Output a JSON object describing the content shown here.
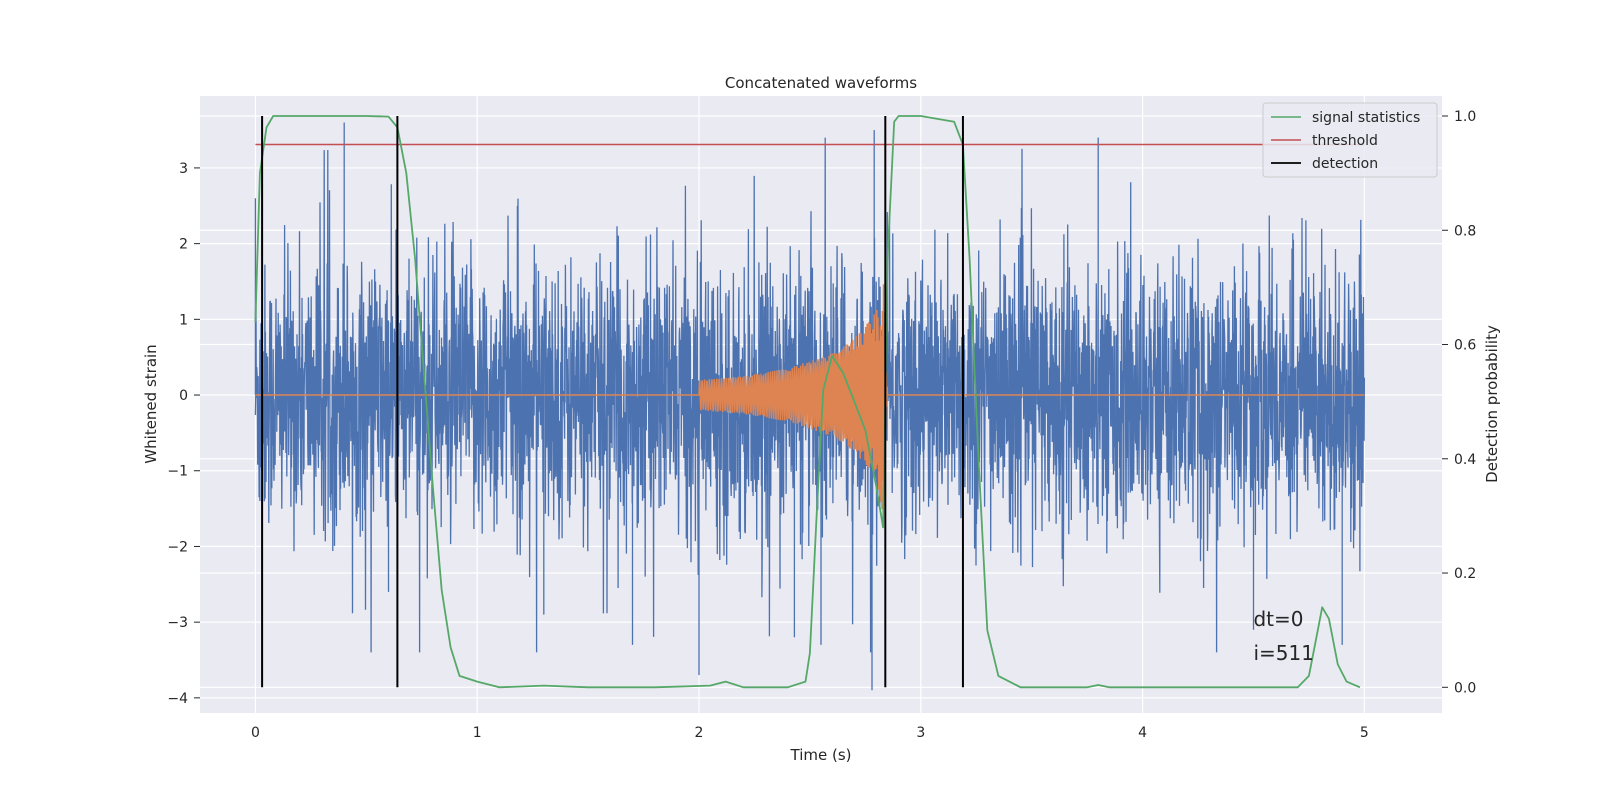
{
  "chart_data": {
    "type": "line",
    "title": "Concatenated waveforms",
    "xlabel": "Time (s)",
    "ylabel_left": "Whitened strain",
    "ylabel_right": "Detection probability",
    "xlim": [
      -0.25,
      5.35
    ],
    "ylim_left": [
      -4.2,
      3.95
    ],
    "ylim_right": [
      -0.045,
      1.035
    ],
    "xticks": [
      0,
      1,
      2,
      3,
      4,
      5
    ],
    "xtick_labels": [
      "0",
      "1",
      "2",
      "3",
      "4",
      "5"
    ],
    "yticks_left": [
      -4,
      -3,
      -2,
      -1,
      0,
      1,
      2,
      3
    ],
    "ytick_labels_left": [
      "−4",
      "−3",
      "−2",
      "−1",
      "0",
      "1",
      "2",
      "3"
    ],
    "yticks_right": [
      0.0,
      0.2,
      0.4,
      0.6,
      0.8,
      1.0
    ],
    "ytick_labels_right": [
      "0.0",
      "0.2",
      "0.4",
      "0.6",
      "0.8",
      "1.0"
    ],
    "grid": true,
    "legend_position": "top-right",
    "legend": [
      {
        "label": "signal statistics",
        "color": "#55a868"
      },
      {
        "label": "threshold",
        "color": "#c44e52"
      },
      {
        "label": "detection",
        "color": "#000000"
      }
    ],
    "series": [
      {
        "name": "whitened strain",
        "axis": "left",
        "color": "#4c72b0",
        "description": "noisy strain, approx. range -3.6 to 3.6",
        "x_range": [
          0,
          5
        ],
        "sample_points": [
          [
            0.0,
            2.6
          ],
          [
            0.02,
            -1.4
          ],
          [
            0.4,
            3.6
          ],
          [
            0.6,
            -2.6
          ],
          [
            0.64,
            -2.3
          ],
          [
            1.3,
            -2.9
          ],
          [
            1.7,
            -3.3
          ],
          [
            2.0,
            -3.7
          ],
          [
            2.43,
            -3.2
          ],
          [
            2.55,
            -3.3
          ],
          [
            2.78,
            -3.9
          ],
          [
            2.79,
            3.5
          ],
          [
            3.8,
            3.4
          ],
          [
            4.5,
            -3.1
          ],
          [
            4.9,
            -3.3
          ],
          [
            4.98,
            1.4
          ]
        ]
      },
      {
        "name": "injected waveform",
        "axis": "left",
        "color": "#dd8452",
        "description": "chirp from 2.0 s to about 2.85 s, amplitude growing from 0.2 to about 1.6",
        "x": [
          0,
          2.0,
          2.2,
          2.4,
          2.6,
          2.7,
          2.8,
          2.83,
          2.85,
          5
        ],
        "amplitude": [
          0,
          0.2,
          0.25,
          0.35,
          0.55,
          0.75,
          1.1,
          1.6,
          0,
          0
        ]
      },
      {
        "name": "signal statistics",
        "axis": "right",
        "color": "#55a868",
        "x": [
          0,
          0.02,
          0.05,
          0.08,
          0.12,
          0.3,
          0.5,
          0.6,
          0.64,
          0.68,
          0.72,
          0.76,
          0.8,
          0.84,
          0.88,
          0.92,
          1.0,
          1.1,
          1.3,
          1.5,
          1.8,
          2.05,
          2.12,
          2.2,
          2.4,
          2.48,
          2.5,
          2.53,
          2.56,
          2.6,
          2.65,
          2.7,
          2.75,
          2.8,
          2.83,
          2.85,
          2.88,
          2.9,
          3.0,
          3.15,
          3.19,
          3.22,
          3.26,
          3.3,
          3.35,
          3.45,
          3.75,
          3.8,
          3.85,
          4.3,
          4.7,
          4.75,
          4.78,
          4.81,
          4.84,
          4.88,
          4.92,
          4.98
        ],
        "y": [
          0.64,
          0.9,
          0.98,
          1.0,
          1.0,
          1.0,
          1.0,
          0.999,
          0.98,
          0.9,
          0.75,
          0.55,
          0.35,
          0.17,
          0.07,
          0.02,
          0.01,
          0.0,
          0.003,
          0.0,
          0.0,
          0.003,
          0.01,
          0.0,
          0.0,
          0.01,
          0.06,
          0.3,
          0.52,
          0.58,
          0.55,
          0.5,
          0.45,
          0.35,
          0.28,
          0.75,
          0.99,
          1.0,
          1.0,
          0.99,
          0.95,
          0.75,
          0.4,
          0.1,
          0.02,
          0.0,
          0.0,
          0.004,
          0.0,
          0.0,
          0.0,
          0.02,
          0.08,
          0.14,
          0.12,
          0.04,
          0.01,
          0.0
        ]
      },
      {
        "name": "threshold",
        "axis": "right",
        "color": "#c44e52",
        "x": [
          0,
          5
        ],
        "y": [
          0.95,
          0.95
        ]
      },
      {
        "name": "detection",
        "axis": "right",
        "color": "#000000",
        "type": "vlines",
        "x": [
          0.03,
          0.64,
          2.84,
          3.19
        ],
        "y_range": [
          0.0,
          1.0
        ]
      }
    ],
    "annotations": [
      {
        "text": "dt=0",
        "x": 4.5,
        "y": -3.05
      },
      {
        "text": "i=511",
        "x": 4.5,
        "y": -3.5
      }
    ]
  }
}
